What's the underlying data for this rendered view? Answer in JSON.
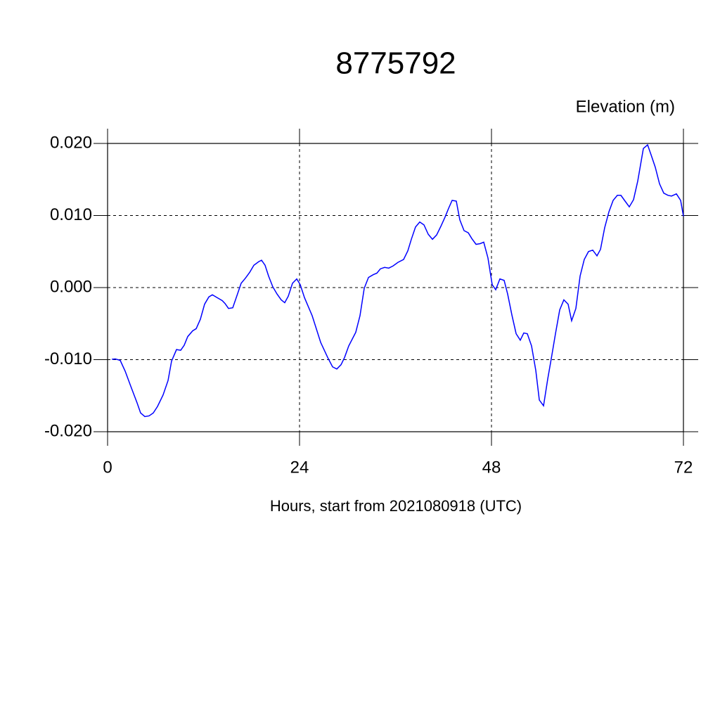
{
  "chart_data": {
    "type": "line",
    "title": "8775792",
    "ylabel": "Elevation (m)",
    "xlabel": "Hours, start from 2021080918 (UTC)",
    "x": [
      0.53,
      0.97,
      1.58,
      2.2,
      2.9,
      3.69,
      4.13,
      4.66,
      5.19,
      5.71,
      6.24,
      6.94,
      7.56,
      8.0,
      8.62,
      9.14,
      9.58,
      10.02,
      10.64,
      11.08,
      11.6,
      12.13,
      12.66,
      13.1,
      13.71,
      14.33,
      14.68,
      15.12,
      15.65,
      16.18,
      16.7,
      17.23,
      17.76,
      18.29,
      18.9,
      19.25,
      19.69,
      20.13,
      20.66,
      21.19,
      21.71,
      22.15,
      22.59,
      23.12,
      23.65,
      24.09,
      24.62,
      25.58,
      26.64,
      27.52,
      28.13,
      28.66,
      29.19,
      29.63,
      30.15,
      31.03,
      31.56,
      32.09,
      32.62,
      33.23,
      33.67,
      34.11,
      34.64,
      35.16,
      35.69,
      36.31,
      37.01,
      37.54,
      37.98,
      38.5,
      39.03,
      39.56,
      40.09,
      40.62,
      41.14,
      41.67,
      42.2,
      42.64,
      43.08,
      43.6,
      44.04,
      44.57,
      45.1,
      45.54,
      46.07,
      46.59,
      47.03,
      47.56,
      48.09,
      48.53,
      49.05,
      49.58,
      50.02,
      50.55,
      51.08,
      51.6,
      52.04,
      52.48,
      53.01,
      53.54,
      53.98,
      54.51,
      55.03,
      55.47,
      56.0,
      56.53,
      57.05,
      57.58,
      58.02,
      58.55,
      59.08,
      59.6,
      60.13,
      60.66,
      61.19,
      61.63,
      62.15,
      62.68,
      63.21,
      63.74,
      64.18,
      64.7,
      65.23,
      65.76,
      66.29,
      66.99,
      67.52,
      67.96,
      68.48,
      69.01,
      69.54,
      70.07,
      70.51,
      71.12,
      71.65,
      72
    ],
    "series": [
      {
        "color": "#0000ff",
        "values": [
          -0.00995,
          -0.0099,
          -0.0101,
          -0.0116,
          -0.0137,
          -0.016,
          -0.0174,
          -0.0179,
          -0.0178,
          -0.0174,
          -0.0165,
          -0.0149,
          -0.0129,
          -0.0102,
          -0.0086,
          -0.0087,
          -0.008,
          -0.0068,
          -0.006,
          -0.0057,
          -0.0044,
          -0.0023,
          -0.0013,
          -0.001,
          -0.0014,
          -0.0018,
          -0.0022,
          -0.0029,
          -0.0028,
          -0.0011,
          0.0006,
          0.0013,
          0.0021,
          0.0031,
          0.0036,
          0.0038,
          0.0031,
          0.0016,
          0.0001,
          -0.0009,
          -0.0017,
          -0.0021,
          -0.0012,
          0.0006,
          0.0012,
          0.0004,
          -0.0014,
          -0.0039,
          -0.0076,
          -0.0097,
          -0.011,
          -0.0113,
          -0.0107,
          -0.0097,
          -0.0081,
          -0.0062,
          -0.0039,
          -0.0001,
          0.0014,
          0.0018,
          0.002,
          0.0026,
          0.0028,
          0.0027,
          0.003,
          0.0035,
          0.0039,
          0.0051,
          0.0067,
          0.0084,
          0.0091,
          0.0087,
          0.0074,
          0.0067,
          0.0073,
          0.0085,
          0.0098,
          0.011,
          0.0121,
          0.012,
          0.0094,
          0.0079,
          0.0076,
          0.0068,
          0.006,
          0.0061,
          0.0063,
          0.0041,
          0.0004,
          -0.0003,
          0.0012,
          0.001,
          -0.0009,
          -0.0038,
          -0.0064,
          -0.0073,
          -0.0063,
          -0.0064,
          -0.0081,
          -0.0115,
          -0.0156,
          -0.0164,
          -0.0127,
          -0.0099,
          -0.0064,
          -0.0031,
          -0.0017,
          -0.0023,
          -0.0046,
          -0.0029,
          0.0016,
          0.0039,
          0.005,
          0.0052,
          0.0044,
          0.0053,
          0.0083,
          0.0105,
          0.0121,
          0.0128,
          0.0128,
          0.012,
          0.0112,
          0.0122,
          0.0148,
          0.0193,
          0.0198,
          0.0184,
          0.0167,
          0.0144,
          0.0131,
          0.0128,
          0.0127,
          0.013,
          0.0121,
          0.0099
        ]
      }
    ],
    "xlim": [
      0,
      72
    ],
    "ylim": [
      -0.02,
      0.02
    ],
    "xticks": [
      0,
      24,
      48,
      72
    ],
    "yticks": [
      {
        "value": -0.02,
        "label": "-0.020"
      },
      {
        "value": -0.01,
        "label": "-0.010"
      },
      {
        "value": 0,
        "label": "0.000"
      },
      {
        "value": 0.01,
        "label": "0.010"
      },
      {
        "value": 0.02,
        "label": "0.020"
      }
    ],
    "grid": true
  }
}
